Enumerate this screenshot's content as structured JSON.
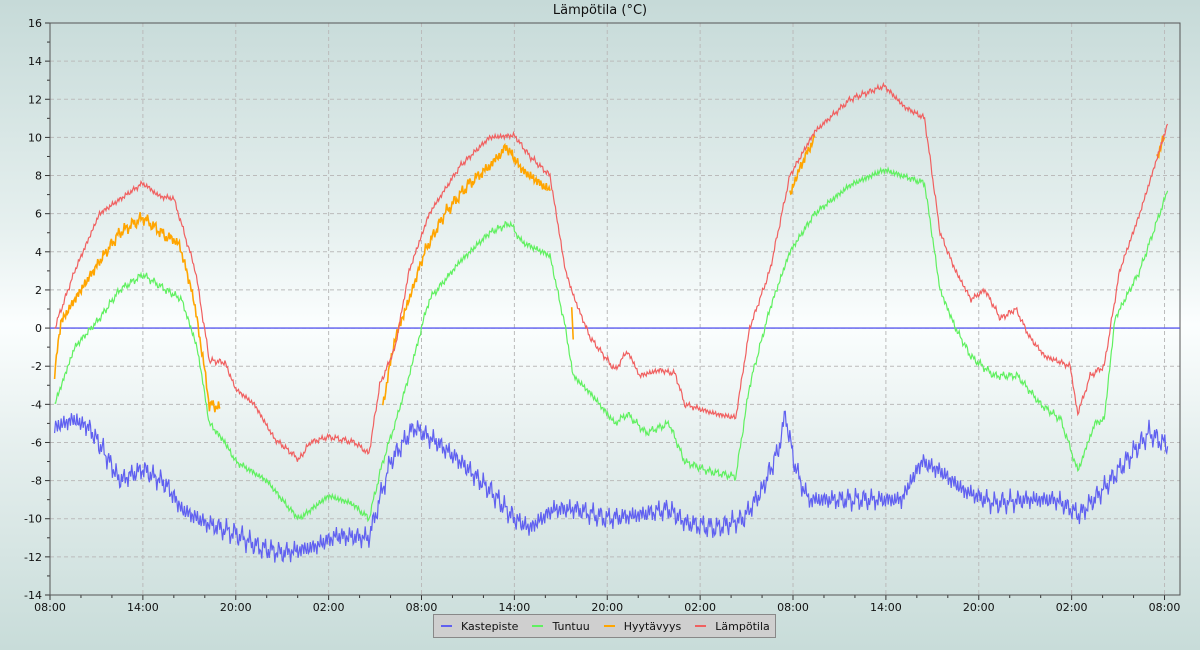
{
  "chart_data": {
    "type": "line",
    "title": "Lämpötila (°C)",
    "xlabel": "",
    "ylabel": "",
    "ylim": [
      -14,
      16
    ],
    "xlim_hours": [
      0,
      73
    ],
    "x_unit": "hours since first 08:00",
    "x_tick_labels": [
      "08:00",
      "14:00",
      "20:00",
      "02:00",
      "08:00",
      "14:00",
      "20:00",
      "02:00",
      "08:00",
      "14:00",
      "20:00",
      "02:00",
      "08:00"
    ],
    "y_ticks": [
      -14,
      -12,
      -10,
      -8,
      -6,
      -4,
      -2,
      0,
      2,
      4,
      6,
      8,
      10,
      12,
      14,
      16
    ],
    "grid": true,
    "legend_position": "bottom",
    "reference_line": {
      "y": 0,
      "color": "#5b5bef"
    },
    "series": [
      {
        "name": "Kastepiste",
        "color": "#6060f0",
        "noise": 0.35,
        "segments": [
          [
            [
              0.3,
              -5.2
            ],
            [
              1.5,
              -4.8
            ],
            [
              2.5,
              -5.2
            ],
            [
              3.5,
              -6.5
            ],
            [
              4.5,
              -8
            ],
            [
              6,
              -7.4
            ],
            [
              7.5,
              -8.2
            ],
            [
              8.5,
              -9.5
            ],
            [
              10,
              -10.2
            ],
            [
              12,
              -10.8
            ],
            [
              13.5,
              -11.5
            ],
            [
              15,
              -11.8
            ],
            [
              17,
              -11.5
            ],
            [
              18.5,
              -10.9
            ],
            [
              20.6,
              -11
            ],
            [
              22,
              -7
            ],
            [
              23.5,
              -5.2
            ],
            [
              25,
              -6
            ],
            [
              26.5,
              -7
            ],
            [
              28.4,
              -8.5
            ],
            [
              30,
              -10
            ],
            [
              31,
              -10.5
            ],
            [
              32.5,
              -9.5
            ],
            [
              34,
              -9.5
            ],
            [
              36,
              -10
            ],
            [
              38,
              -9.8
            ],
            [
              40,
              -9.5
            ],
            [
              41,
              -10.2
            ],
            [
              43,
              -10.5
            ],
            [
              44.8,
              -10
            ],
            [
              46,
              -8.5
            ],
            [
              47,
              -6.5
            ],
            [
              47.5,
              -4.6
            ],
            [
              48.2,
              -7.5
            ],
            [
              49,
              -9
            ],
            [
              51,
              -9
            ],
            [
              53,
              -9
            ],
            [
              55,
              -9
            ],
            [
              56.3,
              -7
            ],
            [
              57.5,
              -7.5
            ],
            [
              59,
              -8.5
            ],
            [
              61,
              -9.2
            ],
            [
              63,
              -9
            ],
            [
              65,
              -9
            ],
            [
              66.5,
              -9.8
            ],
            [
              68,
              -8.5
            ],
            [
              69.5,
              -7
            ],
            [
              71,
              -5.5
            ],
            [
              72.2,
              -6.2
            ]
          ]
        ]
      },
      {
        "name": "Tuntuu",
        "color": "#60f060",
        "noise": 0.12,
        "segments": [
          [
            [
              0.3,
              -4
            ],
            [
              1.6,
              -1
            ],
            [
              3.2,
              0.5
            ],
            [
              4.5,
              2
            ],
            [
              6,
              2.8
            ],
            [
              7.5,
              2
            ],
            [
              8.5,
              1.5
            ],
            [
              9.5,
              -1
            ],
            [
              10.3,
              -5
            ],
            [
              11.3,
              -6
            ],
            [
              12,
              -7
            ],
            [
              14,
              -8
            ],
            [
              15.5,
              -9.5
            ],
            [
              16.1,
              -10
            ],
            [
              18,
              -8.8
            ],
            [
              19.5,
              -9.2
            ],
            [
              20.6,
              -10
            ],
            [
              21.5,
              -7
            ],
            [
              22.3,
              -5
            ],
            [
              23.2,
              -2.5
            ],
            [
              24,
              0
            ],
            [
              24.5,
              1.5
            ],
            [
              26.5,
              3.5
            ],
            [
              28.4,
              5
            ],
            [
              29.7,
              5.5
            ],
            [
              30.5,
              4.5
            ],
            [
              32.3,
              3.8
            ],
            [
              33.3,
              0
            ],
            [
              33.8,
              -2.5
            ],
            [
              35,
              -3.5
            ],
            [
              36.5,
              -5
            ],
            [
              37.3,
              -4.5
            ],
            [
              38.5,
              -5.5
            ],
            [
              40,
              -5
            ],
            [
              41,
              -7
            ],
            [
              42.5,
              -7.5
            ],
            [
              44.3,
              -7.8
            ],
            [
              45.2,
              -3
            ],
            [
              46.5,
              1
            ],
            [
              47.8,
              4
            ],
            [
              49.4,
              6
            ],
            [
              51.7,
              7.5
            ],
            [
              53.9,
              8.3
            ],
            [
              56.5,
              7.6
            ],
            [
              57.5,
              2
            ],
            [
              58.5,
              0
            ],
            [
              59.5,
              -1.5
            ],
            [
              61,
              -2.5
            ],
            [
              62.5,
              -2.5
            ],
            [
              64,
              -4
            ],
            [
              65.3,
              -4.8
            ],
            [
              66.4,
              -7.5
            ],
            [
              67.5,
              -5
            ],
            [
              68.1,
              -4.8
            ],
            [
              68.8,
              0.5
            ],
            [
              70.4,
              3
            ],
            [
              72.2,
              7.2
            ]
          ]
        ]
      },
      {
        "name": "Hyytävyys",
        "color": "#ffa500",
        "noise": 0.2,
        "segments": [
          [
            [
              0.3,
              -2.3
            ],
            [
              0.7,
              0.3
            ],
            [
              1.6,
              1.5
            ],
            [
              3.2,
              3.5
            ],
            [
              4.5,
              5
            ],
            [
              6,
              5.8
            ],
            [
              7.5,
              4.8
            ],
            [
              8.3,
              4.5
            ],
            [
              9,
              2.5
            ],
            [
              9.5,
              0.5
            ],
            [
              10.3,
              -4
            ],
            [
              11,
              -4.2
            ]
          ],
          [
            [
              21.5,
              -4
            ],
            [
              22.3,
              -0.5
            ],
            [
              23.2,
              1.5
            ],
            [
              24.2,
              4
            ],
            [
              25.5,
              6
            ],
            [
              27,
              7.5
            ],
            [
              28.4,
              8.5
            ],
            [
              29.5,
              9.5
            ],
            [
              30.5,
              8.3
            ],
            [
              32.3,
              7.2
            ]
          ],
          [
            [
              33.7,
              1
            ],
            [
              33.8,
              -0.6
            ]
          ],
          [
            [
              47.8,
              7
            ],
            [
              48.5,
              8.5
            ],
            [
              49.4,
              10
            ]
          ],
          [
            [
              71.5,
              9
            ],
            [
              72,
              10
            ]
          ]
        ]
      },
      {
        "name": "Lämpötila",
        "color": "#f06060",
        "noise": 0.1,
        "segments": [
          [
            [
              0.3,
              0
            ],
            [
              1.6,
              3
            ],
            [
              3.2,
              6
            ],
            [
              6,
              7.6
            ],
            [
              7.1,
              6.9
            ],
            [
              8,
              6.8
            ],
            [
              9.4,
              3
            ],
            [
              10.3,
              -1.7
            ],
            [
              11.3,
              -1.8
            ],
            [
              12,
              -3.2
            ],
            [
              13.2,
              -4
            ],
            [
              14.5,
              -5.8
            ],
            [
              16.1,
              -6.9
            ],
            [
              16.8,
              -6
            ],
            [
              18,
              -5.7
            ],
            [
              19.7,
              -6
            ],
            [
              20.6,
              -6.6
            ],
            [
              21.3,
              -3
            ],
            [
              22.3,
              -1
            ],
            [
              23.2,
              3
            ],
            [
              24.5,
              6
            ],
            [
              26.5,
              8.5
            ],
            [
              28.4,
              10
            ],
            [
              30,
              10.1
            ],
            [
              31,
              9
            ],
            [
              32.3,
              8
            ],
            [
              33.3,
              3
            ],
            [
              33.9,
              1.5
            ],
            [
              34.9,
              -0.5
            ],
            [
              36.5,
              -2.2
            ],
            [
              37.3,
              -1.2
            ],
            [
              38.1,
              -2.5
            ],
            [
              39.4,
              -2.2
            ],
            [
              40.4,
              -2.4
            ],
            [
              41,
              -4
            ],
            [
              43,
              -4.5
            ],
            [
              44.3,
              -4.7
            ],
            [
              45.2,
              0
            ],
            [
              46.5,
              3
            ],
            [
              47.8,
              8
            ],
            [
              49.4,
              10.3
            ],
            [
              51.7,
              12
            ],
            [
              53.9,
              12.7
            ],
            [
              55.2,
              11.6
            ],
            [
              56.5,
              11
            ],
            [
              57.5,
              5
            ],
            [
              58.5,
              3
            ],
            [
              59.5,
              1.5
            ],
            [
              60.4,
              2
            ],
            [
              61.4,
              0.5
            ],
            [
              62.4,
              1
            ],
            [
              63.3,
              -0.5
            ],
            [
              64.3,
              -1.5
            ],
            [
              65.3,
              -1.8
            ],
            [
              65.9,
              -2
            ],
            [
              66.4,
              -4.5
            ],
            [
              67.2,
              -2.5
            ],
            [
              68.1,
              -2
            ],
            [
              69.1,
              3
            ],
            [
              70.4,
              6
            ],
            [
              72.2,
              10.7
            ]
          ]
        ]
      }
    ]
  }
}
